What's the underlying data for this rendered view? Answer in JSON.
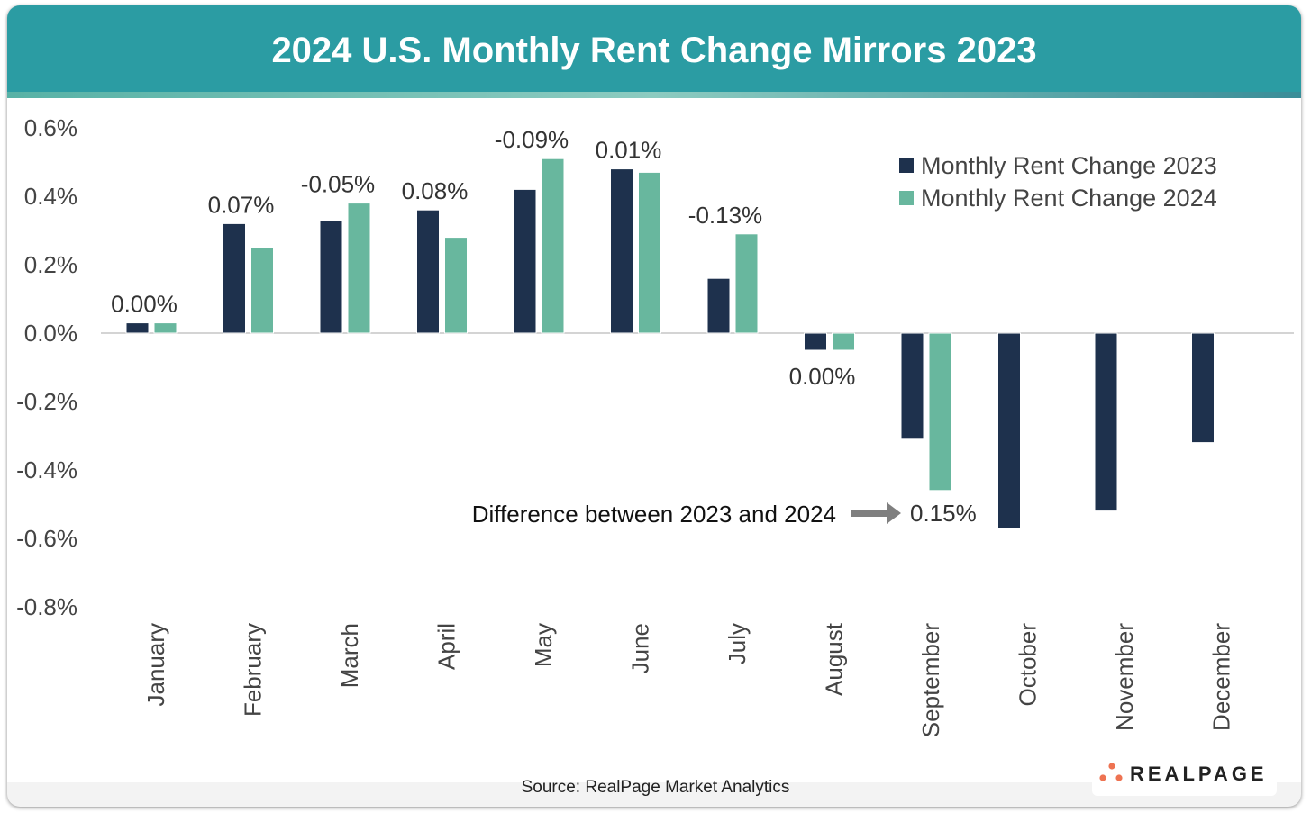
{
  "chart_data": {
    "type": "bar",
    "title": "2024 U.S. Monthly Rent Change Mirrors 2023",
    "categories": [
      "January",
      "February",
      "March",
      "April",
      "May",
      "June",
      "July",
      "August",
      "September",
      "October",
      "November",
      "December"
    ],
    "series": [
      {
        "name": "Monthly Rent Change 2023",
        "color": "#1e314d",
        "values": [
          0.03,
          0.32,
          0.33,
          0.36,
          0.42,
          0.48,
          0.16,
          -0.05,
          -0.31,
          -0.57,
          -0.52,
          -0.32
        ]
      },
      {
        "name": "Monthly Rent Change 2024",
        "color": "#68b79e",
        "values": [
          0.03,
          0.25,
          0.38,
          0.28,
          0.51,
          0.47,
          0.29,
          -0.05,
          -0.46,
          null,
          null,
          null
        ]
      }
    ],
    "difference_labels": [
      "0.00%",
      "0.07%",
      "-0.05%",
      "0.08%",
      "-0.09%",
      "0.01%",
      "-0.13%",
      "0.00%",
      "0.15%",
      null,
      null,
      null
    ],
    "annotation": "Difference between 2023 and 2024",
    "yticks": [
      "0.6%",
      "0.4%",
      "0.2%",
      "0.0%",
      "-0.2%",
      "-0.4%",
      "-0.6%",
      "-0.8%"
    ],
    "ytick_values": [
      0.6,
      0.4,
      0.2,
      0,
      -0.2,
      -0.4,
      -0.6,
      -0.8
    ],
    "ylim": [
      -0.8,
      0.6
    ],
    "xlabel": "",
    "ylabel": "",
    "legend_placement": "top-right",
    "grid": false
  },
  "source": "Source: RealPage Market Analytics",
  "logo": "REALPAGE",
  "colors": {
    "header": "#2b9ca3",
    "logo_dots": "#ee7352"
  }
}
